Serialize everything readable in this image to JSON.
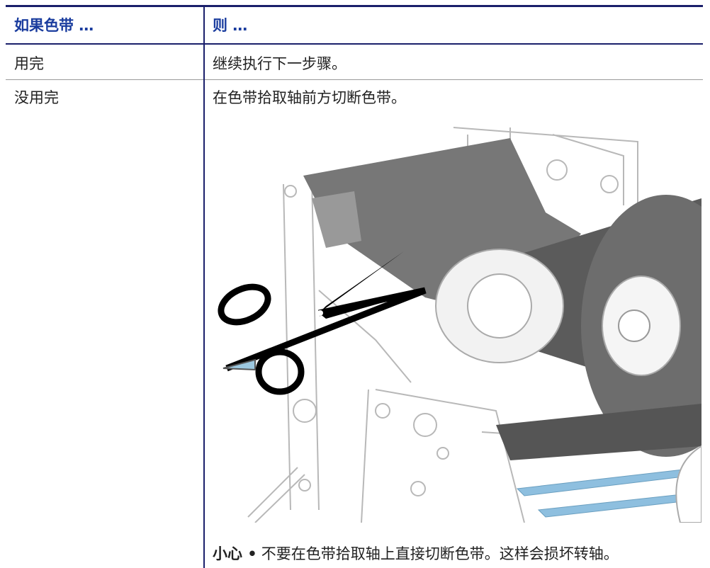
{
  "header": {
    "columns": [
      "如果色带 …",
      "则 …"
    ]
  },
  "table": {
    "rows": [
      [
        "用完",
        "继续执行下一步骤。"
      ],
      [
        "没用完",
        "在色带拾取轴前方切断色带。"
      ]
    ]
  },
  "caution": {
    "label": "小心 •",
    "text": "不要在色带拾取轴上直接切断色带。这样会损坏转轴。"
  }
}
